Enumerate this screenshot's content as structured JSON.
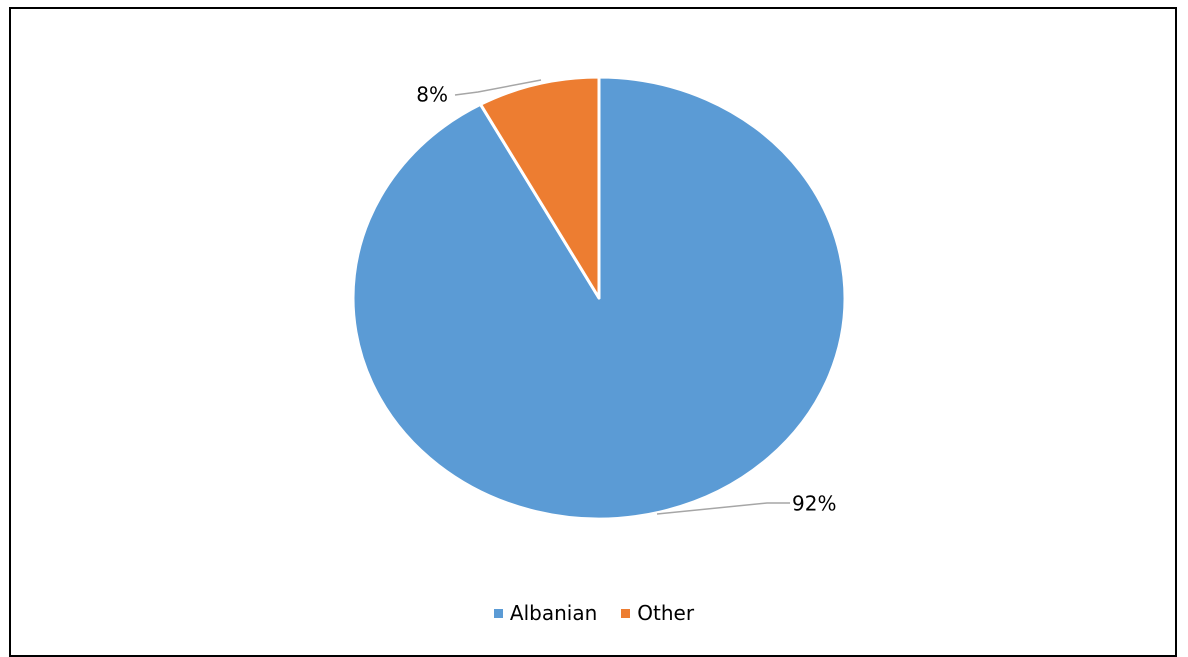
{
  "chart_data": {
    "type": "pie",
    "title": "",
    "start_angle_deg": 0,
    "direction": "clockwise",
    "legend_position": "bottom",
    "slices": [
      {
        "name": "Albanian",
        "value": 92,
        "label": "92%",
        "color": "#5b9bd5"
      },
      {
        "name": "Other",
        "value": 8,
        "label": "8%",
        "color": "#ed7d31"
      }
    ]
  },
  "legend": {
    "items": [
      {
        "label": "Albanian",
        "color": "#5b9bd5"
      },
      {
        "label": "Other",
        "color": "#ed7d31"
      }
    ]
  }
}
